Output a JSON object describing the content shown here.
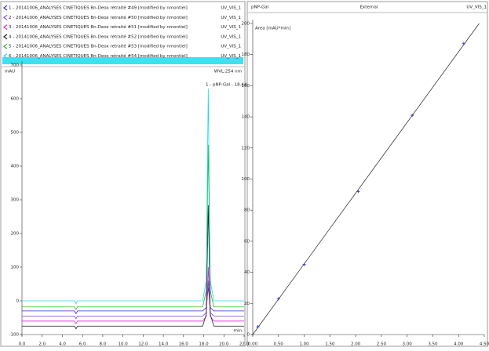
{
  "chart_data": [
    {
      "type": "line",
      "y_label": "mAU",
      "x_label": "min",
      "wavelength": "WVL:254 nm",
      "peak_label": "1 - pNP-Gal - 18.44",
      "x": [
        0,
        5.2,
        5.35,
        5.5,
        17.9,
        18.25,
        18.45,
        18.65,
        19.0,
        22
      ],
      "series": [
        {
          "name": "1 - 20141006_ANALYSES CINETIQUES Bn-Deox retraité #49 [modified by nmontiel]",
          "channel": "UV_VIS_1",
          "color": "#2a2ad0",
          "values": [
            -30,
            -30,
            -38,
            -30,
            -30,
            -20,
            40,
            -20,
            -30,
            -30
          ]
        },
        {
          "name": "2 - 20141006_ANALYSES CINETIQUES Bn-Deox retraité #50 [modified by nmontiel]",
          "channel": "UV_VIS_1",
          "color": "#7a4ad8",
          "values": [
            -45,
            -45,
            -53,
            -45,
            -45,
            -35,
            60,
            -35,
            -45,
            -45
          ]
        },
        {
          "name": "3 - 20141006_ANALYSES CINETIQUES Bn-Deox retraité #51 [modified by nmontiel]",
          "channel": "UV_VIS_1",
          "color": "#e020e0",
          "values": [
            -60,
            -60,
            -68,
            -60,
            -60,
            -45,
            100,
            -45,
            -60,
            -60
          ]
        },
        {
          "name": "4 - 20141006_ANALYSES CINETIQUES Bn-Deox retraité #52 [modified by nmontiel]",
          "channel": "UV_VIS_1",
          "color": "#202020",
          "values": [
            -75,
            -75,
            -83,
            -75,
            -75,
            -40,
            284,
            -40,
            -75,
            -75
          ]
        },
        {
          "name": "5 - 20141006_ANALYSES CINETIQUES Bn-Deox retraité #53 [modified by nmontiel]",
          "channel": "UV_VIS_1",
          "color": "#22c022",
          "values": [
            -18,
            -18,
            -26,
            -18,
            -18,
            30,
            463,
            30,
            -18,
            -18
          ]
        },
        {
          "name": "6 - 20141006_ANALYSES CINETIQUES Bn-Deox retraité #54 [modified by nmontiel]",
          "channel": "UV_VIS_1",
          "color": "#22d8e8",
          "values": [
            0,
            0,
            -8,
            0,
            0,
            60,
            630,
            60,
            0,
            0
          ]
        }
      ],
      "xlim": [
        0,
        22
      ],
      "xticks": [
        {
          "value": 0,
          "label": "0.0"
        },
        {
          "value": 2,
          "label": "2.0"
        },
        {
          "value": 4,
          "label": "4.0"
        },
        {
          "value": 6,
          "label": "6.0"
        },
        {
          "value": 8,
          "label": "8.0"
        },
        {
          "value": 10,
          "label": "10.0"
        },
        {
          "value": 12,
          "label": "12.0"
        },
        {
          "value": 14,
          "label": "14.0"
        },
        {
          "value": 16,
          "label": "16.0"
        },
        {
          "value": 18,
          "label": "18.0"
        },
        {
          "value": 20,
          "label": "20.0"
        },
        {
          "value": 22,
          "label": "22.0"
        }
      ],
      "ylim": [
        -100,
        700
      ],
      "yticks": [
        -100,
        0,
        100,
        200,
        300,
        400,
        500,
        600,
        700
      ]
    },
    {
      "type": "scatter",
      "title": "pNP-Gal",
      "subtitle": "External",
      "channel": "UV_VIS_1",
      "y_label": "Area  [mAU*min]",
      "color": "#3a3ad8",
      "x": [
        0.1,
        0.5,
        1.0,
        2.05,
        3.1,
        4.1
      ],
      "values": [
        5,
        23,
        45,
        92,
        141,
        187
      ],
      "trend": {
        "x": [
          0,
          4.4
        ],
        "values": [
          0,
          200
        ]
      },
      "xlim": [
        0,
        4.5
      ],
      "xticks": [
        {
          "value": 0,
          "label": "0.00"
        },
        {
          "value": 0.5,
          "label": "0.50"
        },
        {
          "value": 1,
          "label": "1.00"
        },
        {
          "value": 1.5,
          "label": "1.50"
        },
        {
          "value": 2,
          "label": "2.00"
        },
        {
          "value": 2.5,
          "label": "2.50"
        },
        {
          "value": 3,
          "label": "3.00"
        },
        {
          "value": 3.5,
          "label": "3.50"
        },
        {
          "value": 4,
          "label": "4.00"
        },
        {
          "value": 4.5,
          "label": "4.50"
        }
      ],
      "ylim": [
        0,
        200
      ],
      "yticks": [
        0,
        20,
        40,
        60,
        80,
        100,
        120,
        140,
        160,
        180,
        200
      ]
    }
  ]
}
